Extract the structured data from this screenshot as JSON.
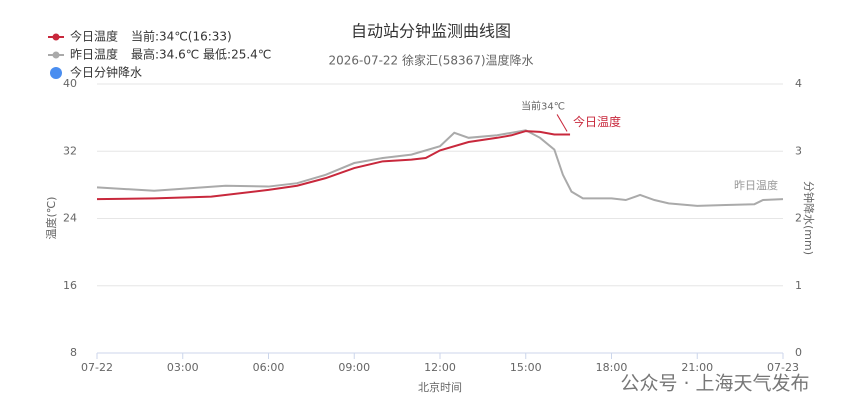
{
  "chart_data": {
    "type": "line",
    "title": "自动站分钟监测曲线图",
    "subtitle": "2026-07-22 徐家汇(58367)温度降水",
    "x_label": "北京时间",
    "y_label": "温度(℃)",
    "y2_label": "分钟降水(mm)",
    "xlim": [
      0,
      24
    ],
    "xticks": [
      {
        "value": 0,
        "label": "07-22"
      },
      {
        "value": 3,
        "label": "03:00"
      },
      {
        "value": 6,
        "label": "06:00"
      },
      {
        "value": 9,
        "label": "09:00"
      },
      {
        "value": 12,
        "label": "12:00"
      },
      {
        "value": 15,
        "label": "15:00"
      },
      {
        "value": 18,
        "label": "18:00"
      },
      {
        "value": 21,
        "label": "21:00"
      },
      {
        "value": 24,
        "label": "07-23"
      }
    ],
    "ylim": [
      8,
      40
    ],
    "yticks": [
      8,
      16,
      24,
      32,
      40
    ],
    "y2lim": [
      0,
      4
    ],
    "y2ticks": [
      0,
      1,
      2,
      3,
      4
    ],
    "grid": true,
    "series": [
      {
        "name": "今日温度",
        "note": "当前:34℃(16:33)",
        "color": "#c8283c",
        "x": [
          0,
          2,
          4,
          6,
          7,
          8,
          9,
          10,
          11,
          11.5,
          12,
          13,
          14,
          14.5,
          15,
          15.5,
          16,
          16.55
        ],
        "values": [
          26.3,
          26.4,
          26.6,
          27.4,
          27.9,
          28.8,
          30.0,
          30.8,
          31.0,
          31.2,
          32.1,
          33.1,
          33.6,
          33.9,
          34.4,
          34.3,
          34.0,
          34.0
        ]
      },
      {
        "name": "昨日温度",
        "note": "最高:34.6℃ 最低:25.4℃",
        "color": "#aaaaaa",
        "x": [
          0,
          2,
          4.5,
          6,
          7,
          8,
          9,
          10,
          11,
          12,
          12.5,
          13,
          14,
          15,
          15.5,
          16,
          16.3,
          16.6,
          17,
          18,
          18.5,
          19,
          19.5,
          20,
          21,
          22,
          23,
          23.3,
          24
        ],
        "values": [
          27.7,
          27.3,
          27.9,
          27.8,
          28.2,
          29.2,
          30.6,
          31.2,
          31.6,
          32.6,
          34.2,
          33.6,
          33.9,
          34.5,
          33.6,
          32.2,
          29.2,
          27.2,
          26.4,
          26.4,
          26.2,
          26.8,
          26.2,
          25.8,
          25.5,
          25.6,
          25.7,
          26.2,
          26.3
        ]
      },
      {
        "name": "今日分钟降水",
        "color": "#4a8ef0",
        "axis": "y2",
        "x": [],
        "values": []
      }
    ],
    "annotations": [
      "当前34℃",
      "今日温度",
      "昨日温度"
    ],
    "watermark": "公众号 · 上海天气发布"
  }
}
